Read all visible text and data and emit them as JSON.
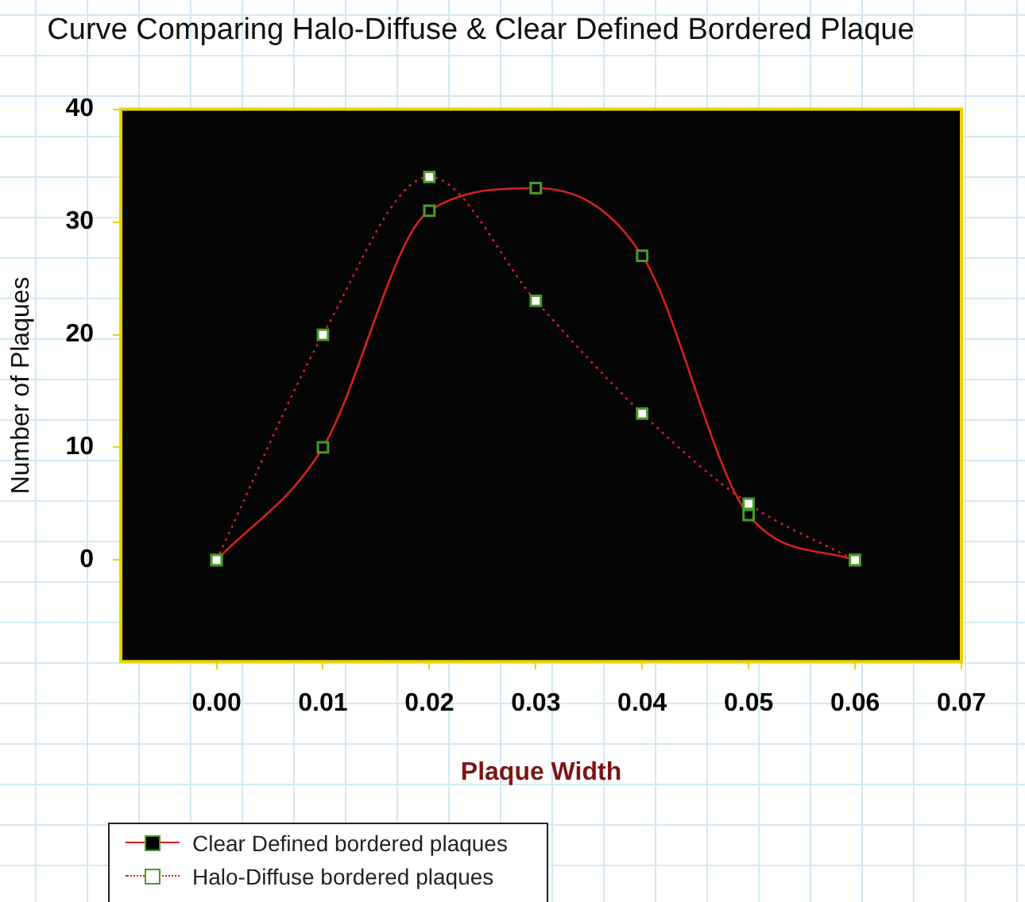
{
  "chart_data": {
    "type": "line",
    "title": "Curve Comparing Halo-Diffuse & Clear Defined Bordered Plaque",
    "xlabel": "Plaque Width",
    "ylabel": "Number of Plaques",
    "x": [
      0,
      0.01,
      0.02,
      0.03,
      0.04,
      0.05,
      0.06
    ],
    "series": [
      {
        "name": "Clear Defined bordered plaques",
        "color": "#d42020",
        "line_style": "solid",
        "values": [
          0,
          10,
          31,
          33,
          27,
          4,
          0
        ]
      },
      {
        "name": "Halo-Diffuse bordered plaques",
        "color": "#d42020",
        "line_style": "dotted",
        "values": [
          0,
          20,
          34,
          23,
          13,
          5,
          0
        ]
      }
    ],
    "xlim": [
      -0.009,
      0.07
    ],
    "ylim": [
      -9,
      40
    ],
    "xticks": [
      {
        "value": 0,
        "label": "0.00"
      },
      {
        "value": 0.01,
        "label": "0.01"
      },
      {
        "value": 0.02,
        "label": "0.02"
      },
      {
        "value": 0.03,
        "label": "0.03"
      },
      {
        "value": 0.04,
        "label": "0.04"
      },
      {
        "value": 0.05,
        "label": "0.05"
      },
      {
        "value": 0.06,
        "label": "0.06"
      },
      {
        "value": 0.07,
        "label": "0.07"
      }
    ],
    "yticks": [
      0,
      10,
      20,
      30,
      40
    ],
    "marker": "square",
    "grid": false,
    "legend": "bottom left"
  }
}
